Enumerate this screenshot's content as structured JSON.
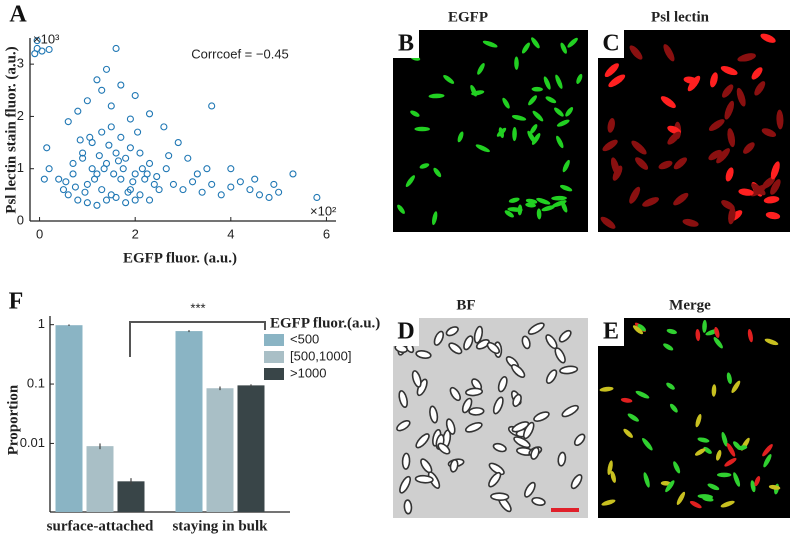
{
  "chart_data": [
    {
      "type": "scatter",
      "panel": "A",
      "xlabel": "EGFP fluor. (a.u.)",
      "ylabel": "Psl lectin stain fluor. (a.u.)",
      "x_multiplier": "×10²",
      "y_multiplier": "×10³",
      "annotation": "Corrcoef = −0.45",
      "color": "#1f77b4",
      "xlim": [
        -0.2,
        6.2
      ],
      "ylim": [
        0,
        3.5
      ],
      "xticks": [
        0,
        2,
        4,
        6
      ],
      "yticks": [
        0,
        1,
        2,
        3
      ],
      "x": [
        -0.05,
        -0.05,
        -0.1,
        0.05,
        0.2,
        1.6,
        1.4,
        1.2,
        1.3,
        1.7,
        3.6,
        2.0,
        1.0,
        0.8,
        1.5,
        2.3,
        0.6,
        1.9,
        2.6,
        2.9,
        3.1,
        0.2,
        0.1,
        0.15,
        0.5,
        0.7,
        0.9,
        1.1,
        1.3,
        1.5,
        1.7,
        1.9,
        2.1,
        2.3,
        0.6,
        0.8,
        1.0,
        1.2,
        1.4,
        1.6,
        1.8,
        2.0,
        2.2,
        2.4,
        0.7,
        0.9,
        1.1,
        1.3,
        1.5,
        1.7,
        1.9,
        2.1,
        2.3,
        2.5,
        1.0,
        1.2,
        1.4,
        1.6,
        1.8,
        2.0,
        0.4,
        0.55,
        0.75,
        0.95,
        1.15,
        1.35,
        1.55,
        1.75,
        1.95,
        2.15,
        1.25,
        1.45,
        1.65,
        1.85,
        1.05,
        0.85,
        2.05,
        2.25,
        2.45,
        2.65,
        2.8,
        3.0,
        3.2,
        3.4,
        3.6,
        3.8,
        4.0,
        4.2,
        4.4,
        4.6,
        4.8,
        4.9,
        5.3,
        5.8,
        4.0,
        3.5,
        4.5,
        5.0,
        2.7,
        3.3
      ],
      "values": [
        3.45,
        3.3,
        3.2,
        3.25,
        3.28,
        3.3,
        2.9,
        2.7,
        2.5,
        2.6,
        2.2,
        2.4,
        2.3,
        2.1,
        2.2,
        2.05,
        1.9,
        1.95,
        1.8,
        1.5,
        1.2,
        1.0,
        0.8,
        1.4,
        0.6,
        0.9,
        1.2,
        1.5,
        1.7,
        1.8,
        1.6,
        1.4,
        1.3,
        1.1,
        0.5,
        0.4,
        0.7,
        0.9,
        1.1,
        1.3,
        1.2,
        0.9,
        0.8,
        0.7,
        1.1,
        1.3,
        1.0,
        0.6,
        0.5,
        0.8,
        0.6,
        0.5,
        0.4,
        0.6,
        0.35,
        0.3,
        0.4,
        0.45,
        0.35,
        0.4,
        0.8,
        0.75,
        0.65,
        0.55,
        0.8,
        1.0,
        0.9,
        1.0,
        0.75,
        1.0,
        1.25,
        1.45,
        1.15,
        0.55,
        1.6,
        1.55,
        1.7,
        0.9,
        0.85,
        1.0,
        0.7,
        0.6,
        0.75,
        0.55,
        0.7,
        0.5,
        0.65,
        0.75,
        0.6,
        0.5,
        0.45,
        0.7,
        0.9,
        0.45,
        1.0,
        1.0,
        0.8,
        0.55,
        1.25,
        0.9
      ]
    },
    {
      "type": "bar",
      "panel": "F",
      "ylabel": "Proportion",
      "log_scale": true,
      "legend_title": "EGFP fluor.(a.u.)",
      "annotation": "***",
      "categories": [
        "surface-attached",
        "staying in bulk"
      ],
      "ylim": [
        0.0007,
        1.4
      ],
      "yticks": [
        0.01,
        0.1,
        1
      ],
      "series": [
        {
          "name": "<500",
          "color": "#8ab4c4",
          "values": [
            0.98,
            0.78
          ],
          "errors": [
            0.03,
            0.03
          ]
        },
        {
          "name": "[500,1000]",
          "color": "#a9bfc6",
          "values": [
            0.009,
            0.085
          ],
          "errors": [
            0.001,
            0.006
          ]
        },
        {
          "name": ">1000",
          "color": "#394548",
          "values": [
            0.0023,
            0.095
          ],
          "errors": [
            0.0003,
            0.004
          ]
        }
      ]
    }
  ],
  "images": [
    {
      "letter": "B",
      "title": "EGFP"
    },
    {
      "letter": "C",
      "title": "Psl lectin"
    },
    {
      "letter": "D",
      "title": "BF"
    },
    {
      "letter": "E",
      "title": "Merge"
    }
  ]
}
